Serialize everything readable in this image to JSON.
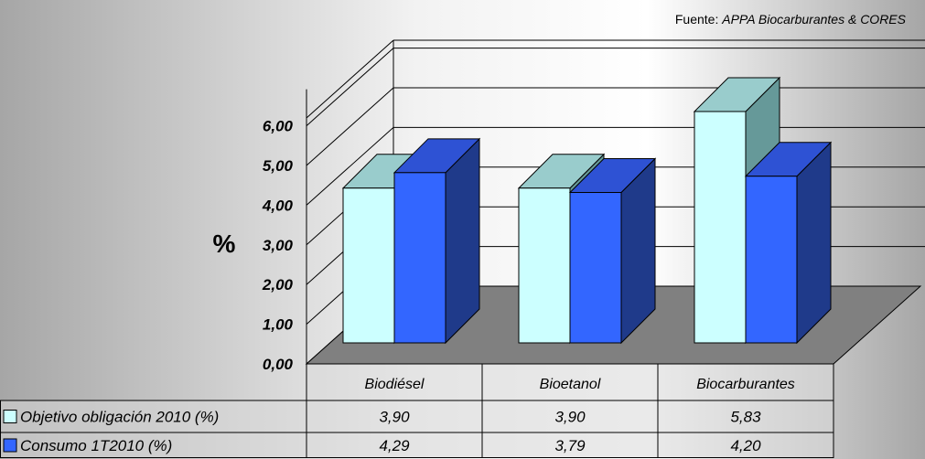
{
  "source_label": "Fuente: ",
  "source_text": "APPA Biocarburantes & CORES",
  "chart_data": {
    "type": "bar",
    "ylabel": "%",
    "ylim": [
      0,
      6
    ],
    "y_ticks": [
      "0,00",
      "1,00",
      "2,00",
      "3,00",
      "4,00",
      "5,00",
      "6,00"
    ],
    "categories": [
      "Biodiésel",
      "Bioetanol",
      "Biocarburantes"
    ],
    "series": [
      {
        "name": "Objetivo obligación 2010 (%)",
        "values": [
          3.9,
          3.9,
          5.83
        ],
        "value_labels": [
          "3,90",
          "3,90",
          "5,83"
        ],
        "front_color": "#CCFFFF",
        "top_color": "#99CCCC",
        "side_color": "#669999"
      },
      {
        "name": "Consumo 1T2010 (%)",
        "values": [
          4.29,
          3.79,
          4.2
        ],
        "value_labels": [
          "4,29",
          "3,79",
          "4,20"
        ],
        "front_color": "#3366FF",
        "top_color": "#2E52D4",
        "side_color": "#1F3A8A"
      }
    ],
    "colors": {
      "floor": "#808080",
      "wall_line": "#000000",
      "background_light": "#FFFFFF",
      "background_dark": "#A6A6A6"
    },
    "grid": true,
    "legend": "data-table-below"
  }
}
